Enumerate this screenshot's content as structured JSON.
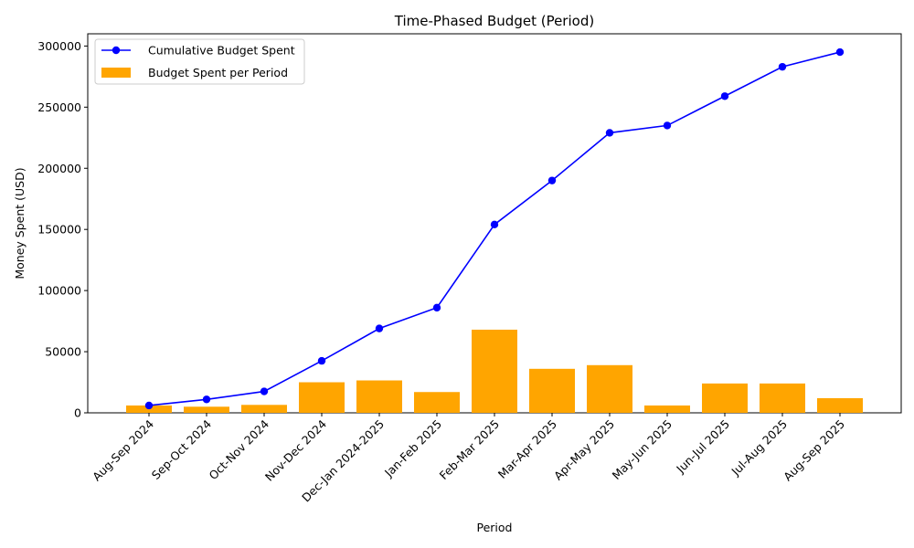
{
  "chart_data": {
    "type": "bar",
    "title": "Time-Phased Budget (Period)",
    "xlabel": "Period",
    "ylabel": "Money Spent (USD)",
    "categories": [
      "Aug-Sep 2024",
      "Sep-Oct 2024",
      "Oct-Nov 2024",
      "Nov-Dec 2024",
      "Dec-Jan 2024-2025",
      "Jan-Feb 2025",
      "Feb-Mar 2025",
      "Mar-Apr 2025",
      "Apr-May 2025",
      "May-Jun 2025",
      "Jun-Jul 2025",
      "Jul-Aug 2025",
      "Aug-Sep 2025"
    ],
    "ylim": [
      0,
      310000
    ],
    "yticks": [
      0,
      50000,
      100000,
      150000,
      200000,
      250000,
      300000
    ],
    "ytick_labels": [
      "0",
      "50000",
      "100000",
      "150000",
      "200000",
      "250000",
      "300000"
    ],
    "grid": false,
    "legend_position": "upper-left",
    "series": [
      {
        "name": "Cumulative Budget Spent",
        "type": "line",
        "color": "#0000ff",
        "marker": "circle",
        "values": [
          6000,
          11000,
          17500,
          42500,
          69000,
          86000,
          154000,
          190000,
          229000,
          235000,
          259000,
          283000,
          295000
        ]
      },
      {
        "name": "Budget Spent per Period",
        "type": "bar",
        "color": "#ffa500",
        "values": [
          6000,
          5000,
          6500,
          25000,
          26500,
          17000,
          68000,
          36000,
          39000,
          6000,
          24000,
          24000,
          12000
        ]
      }
    ]
  }
}
